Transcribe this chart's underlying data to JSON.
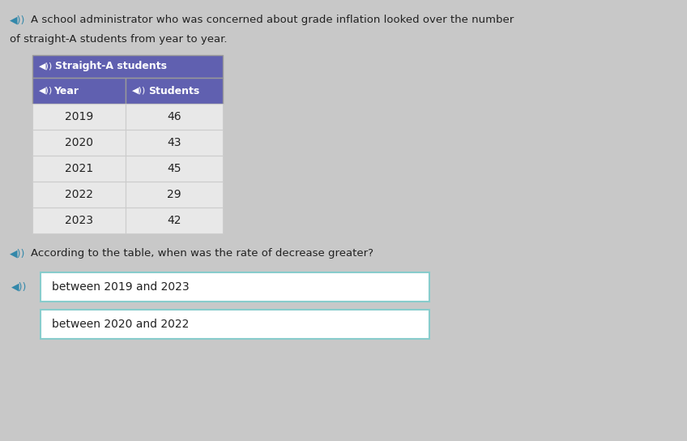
{
  "background_color": "#c8c8c8",
  "intro_line1": "A school administrator who was concerned about grade inflation looked over the number",
  "intro_line2": "of straight-A students from year to year.",
  "table_title": "Straight-A students",
  "col1_header": "Year",
  "col2_header": "Students",
  "table_data": [
    [
      "2019",
      "46"
    ],
    [
      "2020",
      "43"
    ],
    [
      "2021",
      "45"
    ],
    [
      "2022",
      "29"
    ],
    [
      "2023",
      "42"
    ]
  ],
  "header_bg_color": "#6060b0",
  "header_text_color": "#ffffff",
  "table_bg": "#e8e8e8",
  "table_border": "#999999",
  "row_divider": "#cccccc",
  "question_text": "According to the table, when was the rate of decrease greater?",
  "option1_text": "between 2019 and 2023",
  "option2_text": "between 2020 and 2022",
  "option_border_color": "#88cccc",
  "option_bg_color": "#ffffff",
  "speaker_color": "#3388aa",
  "text_color": "#222222",
  "font_size_intro": 9.5,
  "font_size_table_header": 9,
  "font_size_table_data": 10,
  "font_size_question": 9.5,
  "font_size_option": 10
}
